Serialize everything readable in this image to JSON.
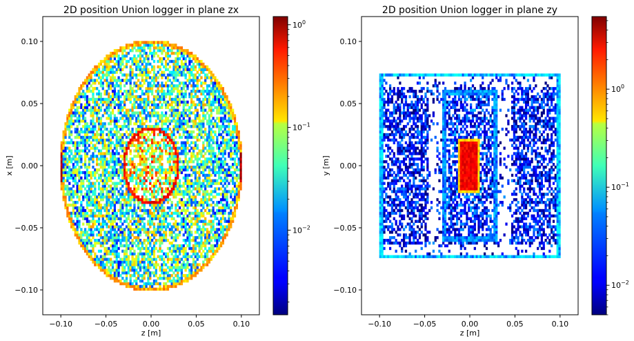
{
  "chart_data": [
    {
      "type": "heatmap",
      "title": "2D position Union logger in plane zx",
      "xlabel": "z [m]",
      "ylabel": "x [m]",
      "xlim": [
        -0.12,
        0.12
      ],
      "ylim": [
        -0.12,
        0.12
      ],
      "xticks": [
        "−0.10",
        "−0.05",
        "0.00",
        "0.05",
        "0.10"
      ],
      "xtick_values": [
        -0.1,
        -0.05,
        0.0,
        0.05,
        0.1
      ],
      "yticks": [
        "−0.10",
        "−0.05",
        "0.00",
        "0.05",
        "0.10"
      ],
      "ytick_values": [
        -0.1,
        -0.05,
        0.0,
        0.05,
        0.1
      ],
      "colormap": "jet",
      "color_scale": "log",
      "colorbar": {
        "range": [
          0.0015,
          1.2
        ],
        "major_ticks": [
          0.01,
          0.1,
          1.0
        ],
        "major_labels": [
          "10",
          "10",
          "10"
        ],
        "exponents": [
          "−2",
          "−1",
          "0"
        ]
      },
      "features": [
        {
          "shape": "disk",
          "center": [
            0.0,
            0.0
          ],
          "radius": 0.1,
          "level": 0.02
        },
        {
          "shape": "ring",
          "center": [
            0.0,
            0.0
          ],
          "radius": 0.1,
          "level": 0.15
        },
        {
          "shape": "ring",
          "center": [
            0.0,
            0.0
          ],
          "radius": 0.03,
          "level": 0.5
        },
        {
          "shape": "disk",
          "center": [
            0.0,
            0.0
          ],
          "radius": 0.028,
          "level": 0.05
        },
        {
          "shape": "spot",
          "center": [
            -0.1,
            0.0
          ],
          "level": 1.0
        },
        {
          "shape": "spot",
          "center": [
            0.1,
            0.0
          ],
          "level": 1.0
        }
      ]
    },
    {
      "type": "heatmap",
      "title": "2D position Union logger in plane zy",
      "xlabel": "z [m]",
      "ylabel": "y [m]",
      "xlim": [
        -0.12,
        0.12
      ],
      "ylim": [
        -0.12,
        0.12
      ],
      "xticks": [
        "−0.10",
        "−0.05",
        "0.00",
        "0.05",
        "0.10"
      ],
      "xtick_values": [
        -0.1,
        -0.05,
        0.0,
        0.05,
        0.1
      ],
      "yticks": [
        "−0.10",
        "−0.05",
        "0.00",
        "0.05",
        "0.10"
      ],
      "ytick_values": [
        -0.1,
        -0.05,
        0.0,
        0.05,
        0.1
      ],
      "colormap": "jet",
      "color_scale": "log",
      "colorbar": {
        "range": [
          0.005,
          5.5
        ],
        "major_ticks": [
          0.01,
          0.1,
          1.0
        ],
        "major_labels": [
          "10",
          "10",
          "10"
        ],
        "exponents": [
          "−2",
          "−1",
          "0"
        ]
      },
      "features": [
        {
          "shape": "rect",
          "z": [
            -0.1,
            0.1
          ],
          "y": [
            -0.075,
            0.075
          ],
          "level": 0.012
        },
        {
          "shape": "frame",
          "z": [
            -0.1,
            0.1
          ],
          "y": [
            -0.075,
            0.075
          ],
          "level": 0.04
        },
        {
          "shape": "frame",
          "z": [
            -0.03,
            0.03
          ],
          "y": [
            -0.06,
            0.06
          ],
          "level": 0.03
        },
        {
          "shape": "rect",
          "z": [
            -0.012,
            0.012
          ],
          "y": [
            -0.022,
            0.022
          ],
          "level": 2.5
        }
      ]
    }
  ]
}
